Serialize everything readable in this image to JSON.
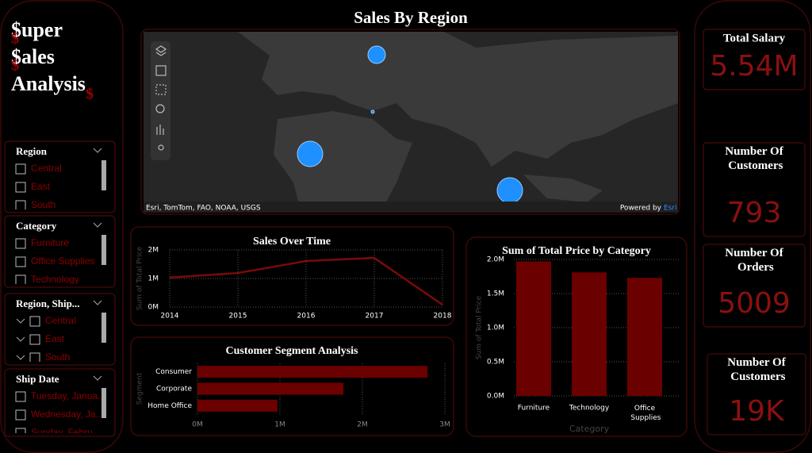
{
  "brand": {
    "lines": [
      "$uper",
      "$ales",
      "Analysis"
    ],
    "mark": "$"
  },
  "slicers": [
    {
      "title": "Region",
      "items": [
        "Central",
        "East",
        "South"
      ]
    },
    {
      "title": "Category",
      "items": [
        "Furniture",
        "Office Supplies",
        "Technology"
      ]
    },
    {
      "title": "Region, Ship...",
      "items": [
        "Central",
        "East",
        "South"
      ]
    },
    {
      "title": "Ship Date",
      "items": [
        "Tuesday, Janua...",
        "Wednesday, Ja...",
        "Sunday, Febru..."
      ]
    }
  ],
  "map": {
    "title": "Sales By Region",
    "attribution": "Esri, TomTom, FAO, NOAA, USGS",
    "powered_by": "Powered by",
    "powered_by_link": "Esri"
  },
  "kpis": [
    {
      "label": "Total Salary",
      "value": "5.54M"
    },
    {
      "label": "Number Of Customers",
      "value": "793"
    },
    {
      "label": "Number Of Orders",
      "value": "5009"
    },
    {
      "label": "Number Of Customers",
      "value": "19K"
    }
  ],
  "chart_data": [
    {
      "type": "line",
      "title": "Sales Over Time",
      "ylabel": "Sum of Total Price",
      "color": "#7a0a0a",
      "x": [
        2014,
        2015,
        2016,
        2017,
        2018
      ],
      "values": [
        1030000,
        1190000,
        1610000,
        1720000,
        80000
      ],
      "xlim": [
        2014,
        2018
      ],
      "xticks": [
        2014,
        2015,
        2016,
        2017,
        2018
      ],
      "ylim": [
        0,
        2000000
      ],
      "yticks": [
        {
          "value": 0,
          "label": "0M"
        },
        {
          "value": 1000000,
          "label": "1M"
        },
        {
          "value": 2000000,
          "label": "2M"
        }
      ],
      "grid": true
    },
    {
      "type": "hbar",
      "title": "Customer Segment Analysis",
      "ylabel": "Segment",
      "color": "#6b0000",
      "categories": [
        "Consumer",
        "Corporate",
        "Home Office"
      ],
      "values": [
        2790000,
        1770000,
        970000
      ],
      "xlim": [
        0,
        3000000
      ],
      "xticks": [
        {
          "value": 0,
          "label": "0M"
        },
        {
          "value": 1000000,
          "label": "1M"
        },
        {
          "value": 2000000,
          "label": "2M"
        },
        {
          "value": 3000000,
          "label": "3M"
        }
      ],
      "grid": true
    },
    {
      "type": "bar",
      "title": "Sum of Total Price by Category",
      "xlabel": "Category",
      "ylabel": "Sum of Total Price",
      "color": "#6b0000",
      "categories": [
        "Furniture",
        "Technology",
        "Office Supplies"
      ],
      "values": [
        1970000,
        1810000,
        1730000
      ],
      "ylim": [
        0,
        2000000
      ],
      "yticks": [
        {
          "value": 0,
          "label": "0.0M"
        },
        {
          "value": 500000,
          "label": "0.5M"
        },
        {
          "value": 1000000,
          "label": "1.0M"
        },
        {
          "value": 1500000,
          "label": "1.5M"
        },
        {
          "value": 2000000,
          "label": "2.0M"
        }
      ],
      "grid": true
    }
  ]
}
